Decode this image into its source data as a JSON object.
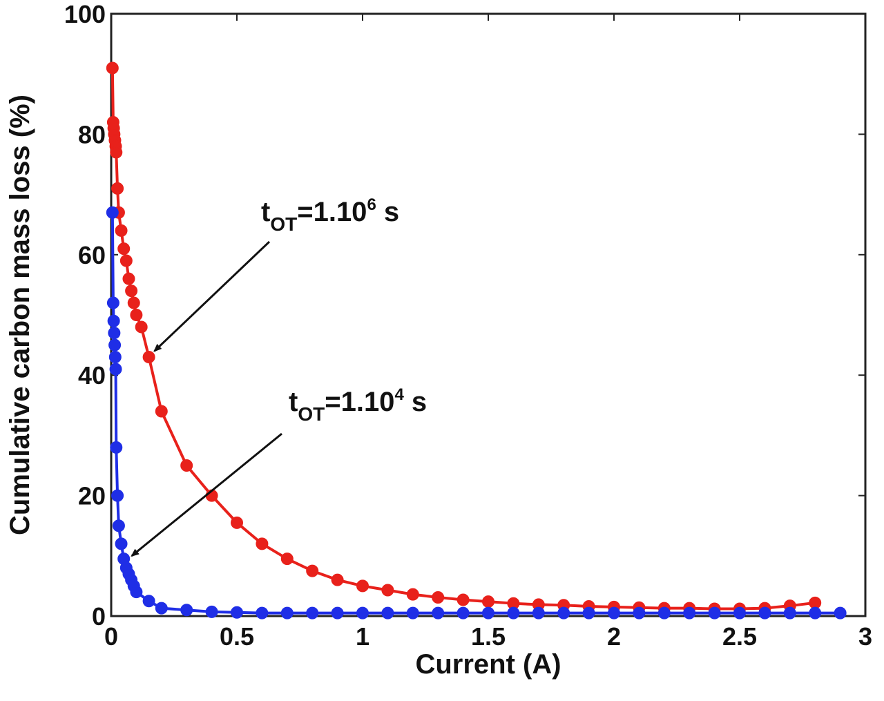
{
  "chart_data": {
    "type": "line",
    "title": "",
    "xlabel": "Current (A)",
    "ylabel": "Cumulative carbon mass loss (%)",
    "xlim": [
      0,
      3
    ],
    "ylim": [
      0,
      100
    ],
    "xticks": [
      "0",
      "0.5",
      "1",
      "1.5",
      "2",
      "2.5",
      "3"
    ],
    "yticks": [
      "0",
      "20",
      "40",
      "60",
      "80",
      "100"
    ],
    "grid": false,
    "legend": "none",
    "series": [
      {
        "color": "#e8211b",
        "marker": "circle",
        "x": [
          0.005,
          0.008,
          0.01,
          0.012,
          0.015,
          0.018,
          0.02,
          0.025,
          0.03,
          0.04,
          0.05,
          0.06,
          0.07,
          0.08,
          0.09,
          0.1,
          0.12,
          0.15,
          0.2,
          0.3,
          0.4,
          0.5,
          0.6,
          0.7,
          0.8,
          0.9,
          1.0,
          1.1,
          1.2,
          1.3,
          1.4,
          1.5,
          1.6,
          1.7,
          1.8,
          1.9,
          2.0,
          2.1,
          2.2,
          2.3,
          2.4,
          2.5,
          2.6,
          2.7,
          2.8
        ],
        "y": [
          91,
          82,
          81,
          80,
          79,
          78,
          77,
          71,
          67,
          64,
          61,
          59,
          56,
          54,
          52,
          50,
          48,
          43,
          34,
          25,
          20,
          15.5,
          12,
          9.5,
          7.5,
          6,
          5,
          4.3,
          3.6,
          3.1,
          2.7,
          2.4,
          2.1,
          1.9,
          1.8,
          1.6,
          1.5,
          1.4,
          1.3,
          1.3,
          1.2,
          1.2,
          1.3,
          1.7,
          2.2
        ]
      },
      {
        "color": "#1f2ee6",
        "marker": "circle",
        "x": [
          0.005,
          0.008,
          0.01,
          0.012,
          0.014,
          0.016,
          0.018,
          0.02,
          0.025,
          0.03,
          0.04,
          0.05,
          0.06,
          0.07,
          0.08,
          0.09,
          0.1,
          0.15,
          0.2,
          0.3,
          0.4,
          0.5,
          0.6,
          0.7,
          0.8,
          0.9,
          1.0,
          1.1,
          1.2,
          1.3,
          1.4,
          1.5,
          1.6,
          1.7,
          1.8,
          1.9,
          2.0,
          2.1,
          2.2,
          2.3,
          2.4,
          2.5,
          2.6,
          2.7,
          2.8,
          2.9
        ],
        "y": [
          67,
          52,
          49,
          47,
          45,
          43,
          41,
          28,
          20,
          15,
          12,
          9.5,
          8,
          7,
          6,
          5,
          4,
          2.5,
          1.3,
          1.0,
          0.7,
          0.6,
          0.5,
          0.5,
          0.5,
          0.5,
          0.5,
          0.5,
          0.5,
          0.5,
          0.5,
          0.5,
          0.5,
          0.5,
          0.5,
          0.5,
          0.5,
          0.5,
          0.5,
          0.5,
          0.5,
          0.5,
          0.5,
          0.5,
          0.5,
          0.5
        ]
      }
    ],
    "annotations": [
      {
        "text": "t",
        "sub": "OT",
        "mid": "=1.10",
        "sup": "6",
        "tail": " s",
        "arrow_to": [
          0.15,
          44
        ]
      },
      {
        "text": "t",
        "sub": "OT",
        "mid": "=1.10",
        "sup": "4",
        "tail": " s",
        "arrow_to": [
          0.06,
          10
        ]
      }
    ]
  }
}
